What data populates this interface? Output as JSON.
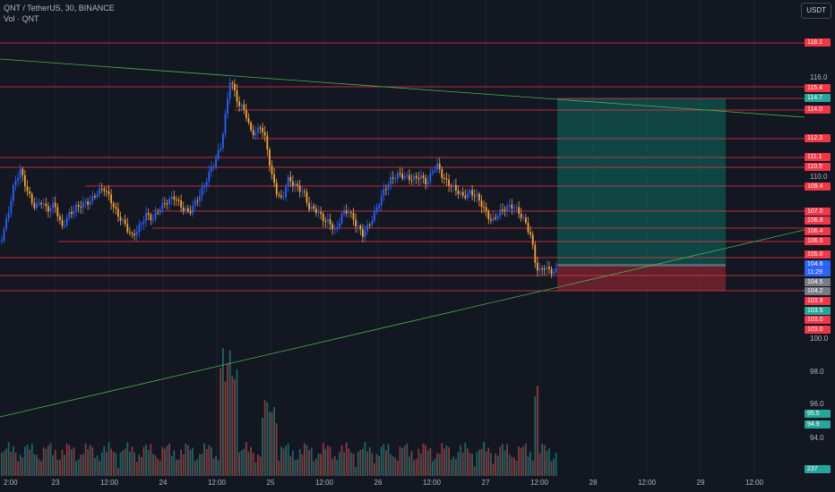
{
  "header": {
    "symbol_title": "QNT / TetherUS, 30, BINANCE",
    "volume_label": "Vol · QNT",
    "currency_button": "USDT"
  },
  "colors": {
    "background": "#131722",
    "up_candle": "#2962ff",
    "down_candle": "#f7a335",
    "volume_up": "#26a69a",
    "volume_down": "#ef5350",
    "horizontal_level": "#f23645",
    "trendline": "#4caf50",
    "target_zone": "#0d6e5e",
    "stop_zone": "#9c2733"
  },
  "price_axis": {
    "ticks": [
      "116.0",
      "110.0",
      "100.0",
      "98.0",
      "96.0",
      "94.0"
    ],
    "level_labels": [
      {
        "text": "118.1",
        "color": "#f23645"
      },
      {
        "text": "115.4",
        "color": "#f23645"
      },
      {
        "text": "114.7",
        "color": "#26a69a"
      },
      {
        "text": "114.0",
        "color": "#f23645"
      },
      {
        "text": "112.3",
        "color": "#f23645"
      },
      {
        "text": "111.1",
        "color": "#f23645"
      },
      {
        "text": "110.5",
        "color": "#f23645"
      },
      {
        "text": "109.4",
        "color": "#f23645"
      },
      {
        "text": "107.0",
        "color": "#f23645"
      },
      {
        "text": "106.8",
        "color": "#f23645"
      },
      {
        "text": "106.4",
        "color": "#f23645"
      },
      {
        "text": "106.0",
        "color": "#f23645"
      },
      {
        "text": "105.0",
        "color": "#f23645"
      },
      {
        "text": "104.6",
        "color": "#2962ff"
      },
      {
        "text": "11:29",
        "color": "#2962ff"
      },
      {
        "text": "104.5",
        "color": "#787b86"
      },
      {
        "text": "104.2",
        "color": "#787b86"
      },
      {
        "text": "103.9",
        "color": "#f23645"
      },
      {
        "text": "103.5",
        "color": "#26a69a"
      },
      {
        "text": "103.0",
        "color": "#f23645"
      },
      {
        "text": "103.0",
        "color": "#f23645"
      },
      {
        "text": "95.5",
        "color": "#26a69a"
      },
      {
        "text": "94.9",
        "color": "#26a69a"
      },
      {
        "text": "237",
        "color": "#26a69a"
      }
    ]
  },
  "time_axis": {
    "labels": [
      "2:00",
      "23",
      "12:00",
      "24",
      "12:00",
      "25",
      "12:00",
      "26",
      "12:00",
      "27",
      "12:00",
      "28",
      "12:00",
      "29",
      "12:00"
    ]
  }
}
